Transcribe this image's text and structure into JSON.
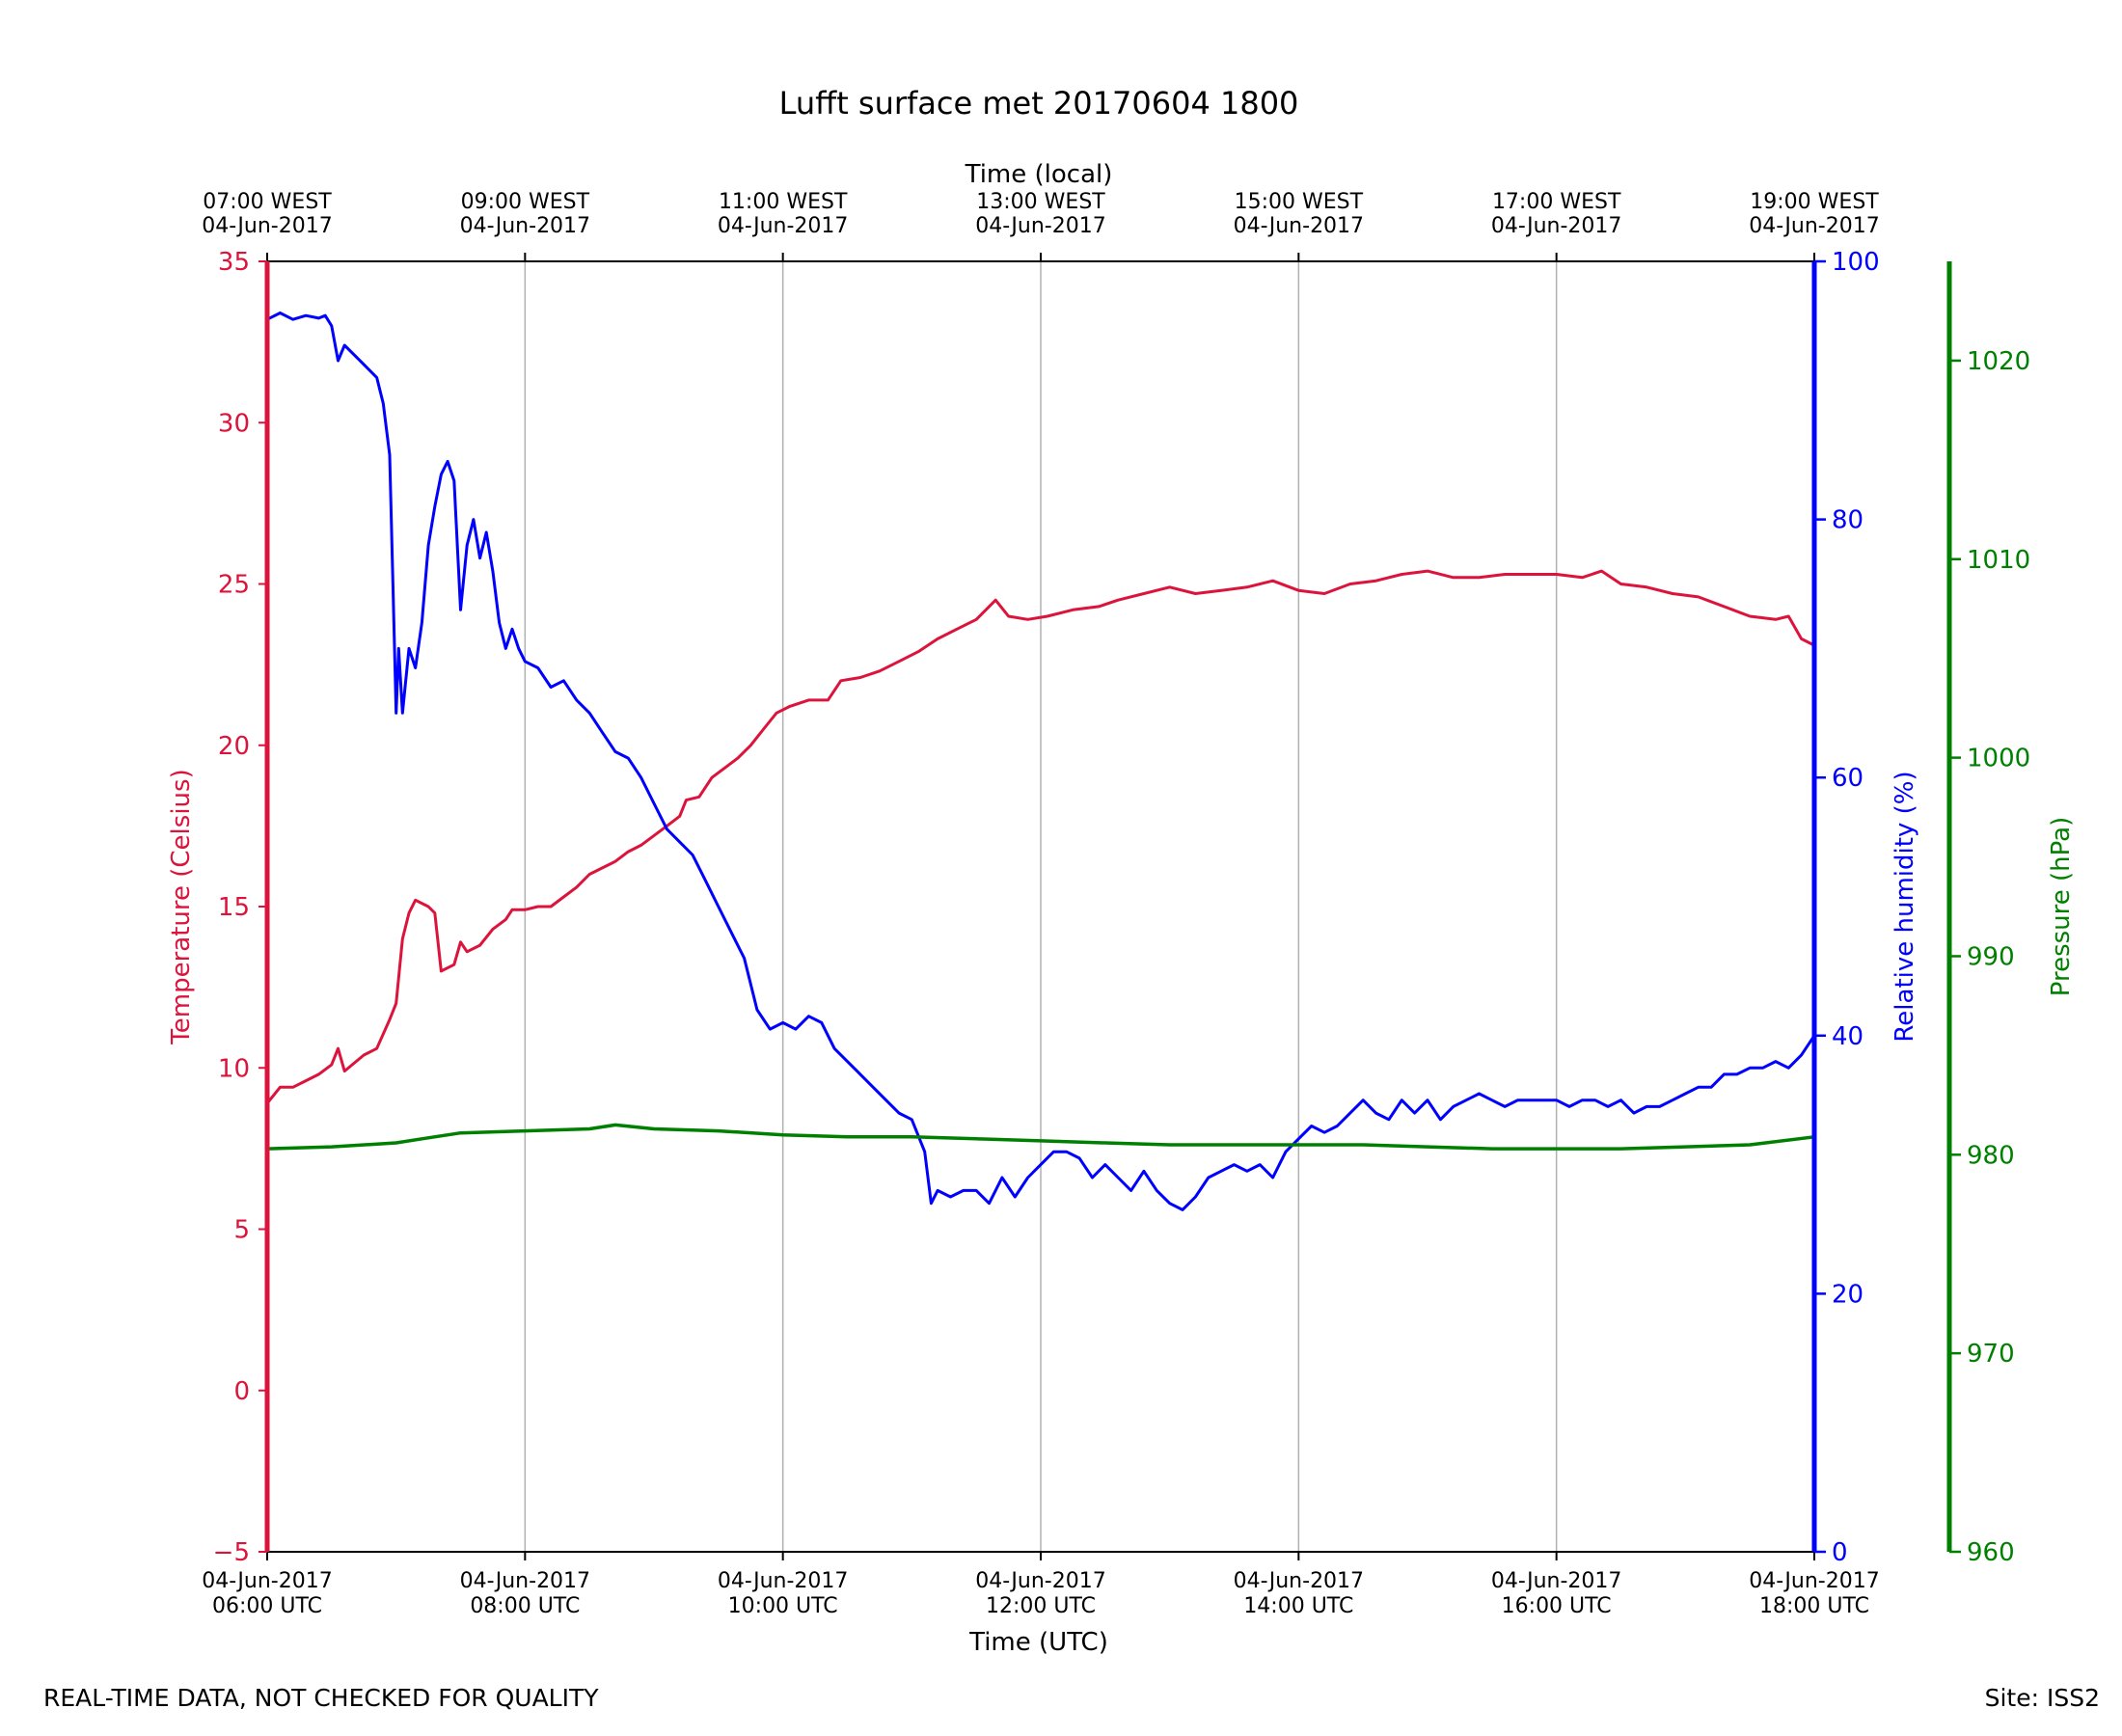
{
  "chart_data": {
    "type": "line",
    "title": "Lufft surface met 20170604 1800",
    "x_bottom": {
      "label": "Time (UTC)",
      "range_hours_utc": [
        6,
        18
      ],
      "ticks": [
        {
          "hour": 6,
          "date": "04-Jun-2017",
          "time": "06:00 UTC"
        },
        {
          "hour": 8,
          "date": "04-Jun-2017",
          "time": "08:00 UTC"
        },
        {
          "hour": 10,
          "date": "04-Jun-2017",
          "time": "10:00 UTC"
        },
        {
          "hour": 12,
          "date": "04-Jun-2017",
          "time": "12:00 UTC"
        },
        {
          "hour": 14,
          "date": "04-Jun-2017",
          "time": "14:00 UTC"
        },
        {
          "hour": 16,
          "date": "04-Jun-2017",
          "time": "16:00 UTC"
        },
        {
          "hour": 18,
          "date": "04-Jun-2017",
          "time": "18:00 UTC"
        }
      ]
    },
    "x_top": {
      "label": "Time (local)",
      "ticks": [
        {
          "hour": 6,
          "time": "07:00 WEST",
          "date": "04-Jun-2017"
        },
        {
          "hour": 8,
          "time": "09:00 WEST",
          "date": "04-Jun-2017"
        },
        {
          "hour": 10,
          "time": "11:00 WEST",
          "date": "04-Jun-2017"
        },
        {
          "hour": 12,
          "time": "13:00 WEST",
          "date": "04-Jun-2017"
        },
        {
          "hour": 14,
          "time": "15:00 WEST",
          "date": "04-Jun-2017"
        },
        {
          "hour": 16,
          "time": "17:00 WEST",
          "date": "04-Jun-2017"
        },
        {
          "hour": 18,
          "time": "19:00 WEST",
          "date": "04-Jun-2017"
        }
      ]
    },
    "y_axes": {
      "temperature": {
        "label": "Temperature (Celsius)",
        "range": [
          -5,
          35
        ],
        "ticks": [
          "−5",
          "0",
          "5",
          "10",
          "15",
          "20",
          "25",
          "30",
          "35"
        ],
        "color": "#dc143c"
      },
      "humidity": {
        "label": "Relative humidity (%)",
        "range": [
          0,
          100
        ],
        "ticks": [
          "0",
          "20",
          "40",
          "60",
          "80",
          "100"
        ],
        "color": "#0000ff"
      },
      "pressure": {
        "label": "Pressure (hPa)",
        "range": [
          960,
          1025
        ],
        "ticks": [
          "960",
          "970",
          "980",
          "990",
          "1000",
          "1010",
          "1020"
        ],
        "color": "#008000"
      }
    },
    "grid": "vertical",
    "series": [
      {
        "name": "Temperature",
        "axis": "temperature",
        "color": "#dc143c",
        "points": [
          [
            6.0,
            8.9
          ],
          [
            6.1,
            9.4
          ],
          [
            6.2,
            9.4
          ],
          [
            6.3,
            9.6
          ],
          [
            6.4,
            9.8
          ],
          [
            6.5,
            10.1
          ],
          [
            6.55,
            10.6
          ],
          [
            6.6,
            9.9
          ],
          [
            6.75,
            10.4
          ],
          [
            6.85,
            10.6
          ],
          [
            6.95,
            11.5
          ],
          [
            7.0,
            12.0
          ],
          [
            7.05,
            14.0
          ],
          [
            7.1,
            14.8
          ],
          [
            7.15,
            15.2
          ],
          [
            7.25,
            15.0
          ],
          [
            7.3,
            14.8
          ],
          [
            7.35,
            13.0
          ],
          [
            7.45,
            13.2
          ],
          [
            7.5,
            13.9
          ],
          [
            7.55,
            13.6
          ],
          [
            7.65,
            13.8
          ],
          [
            7.75,
            14.3
          ],
          [
            7.85,
            14.6
          ],
          [
            7.9,
            14.9
          ],
          [
            8.0,
            14.9
          ],
          [
            8.1,
            15.0
          ],
          [
            8.2,
            15.0
          ],
          [
            8.3,
            15.3
          ],
          [
            8.4,
            15.6
          ],
          [
            8.5,
            16.0
          ],
          [
            8.6,
            16.2
          ],
          [
            8.7,
            16.4
          ],
          [
            8.8,
            16.7
          ],
          [
            8.9,
            16.9
          ],
          [
            9.0,
            17.2
          ],
          [
            9.1,
            17.5
          ],
          [
            9.2,
            17.8
          ],
          [
            9.25,
            18.3
          ],
          [
            9.35,
            18.4
          ],
          [
            9.45,
            19.0
          ],
          [
            9.55,
            19.3
          ],
          [
            9.65,
            19.6
          ],
          [
            9.75,
            20.0
          ],
          [
            9.85,
            20.5
          ],
          [
            9.95,
            21.0
          ],
          [
            10.05,
            21.2
          ],
          [
            10.2,
            21.4
          ],
          [
            10.35,
            21.4
          ],
          [
            10.45,
            22.0
          ],
          [
            10.6,
            22.1
          ],
          [
            10.75,
            22.3
          ],
          [
            10.9,
            22.6
          ],
          [
            11.05,
            22.9
          ],
          [
            11.2,
            23.3
          ],
          [
            11.35,
            23.6
          ],
          [
            11.5,
            23.9
          ],
          [
            11.65,
            24.5
          ],
          [
            11.75,
            24.0
          ],
          [
            11.9,
            23.9
          ],
          [
            12.05,
            24.0
          ],
          [
            12.25,
            24.2
          ],
          [
            12.45,
            24.3
          ],
          [
            12.6,
            24.5
          ],
          [
            12.8,
            24.7
          ],
          [
            13.0,
            24.9
          ],
          [
            13.2,
            24.7
          ],
          [
            13.4,
            24.8
          ],
          [
            13.6,
            24.9
          ],
          [
            13.8,
            25.1
          ],
          [
            14.0,
            24.8
          ],
          [
            14.2,
            24.7
          ],
          [
            14.4,
            25.0
          ],
          [
            14.6,
            25.1
          ],
          [
            14.8,
            25.3
          ],
          [
            15.0,
            25.4
          ],
          [
            15.2,
            25.2
          ],
          [
            15.4,
            25.2
          ],
          [
            15.6,
            25.3
          ],
          [
            15.8,
            25.3
          ],
          [
            16.0,
            25.3
          ],
          [
            16.2,
            25.2
          ],
          [
            16.35,
            25.4
          ],
          [
            16.5,
            25.0
          ],
          [
            16.7,
            24.9
          ],
          [
            16.9,
            24.7
          ],
          [
            17.1,
            24.6
          ],
          [
            17.3,
            24.3
          ],
          [
            17.5,
            24.0
          ],
          [
            17.7,
            23.9
          ],
          [
            17.8,
            24.0
          ],
          [
            17.9,
            23.3
          ],
          [
            18.0,
            23.1
          ]
        ]
      },
      {
        "name": "Relative humidity",
        "axis": "humidity",
        "color": "#0000ff",
        "points": [
          [
            6.0,
            95.5
          ],
          [
            6.1,
            96.0
          ],
          [
            6.2,
            95.5
          ],
          [
            6.3,
            95.8
          ],
          [
            6.4,
            95.6
          ],
          [
            6.45,
            95.8
          ],
          [
            6.5,
            95.0
          ],
          [
            6.55,
            92.3
          ],
          [
            6.6,
            93.5
          ],
          [
            6.7,
            92.5
          ],
          [
            6.8,
            91.5
          ],
          [
            6.85,
            91.0
          ],
          [
            6.9,
            89.0
          ],
          [
            6.95,
            85.0
          ],
          [
            6.97,
            77.0
          ],
          [
            7.0,
            65.0
          ],
          [
            7.02,
            70.0
          ],
          [
            7.05,
            65.0
          ],
          [
            7.1,
            70.0
          ],
          [
            7.15,
            68.5
          ],
          [
            7.2,
            72.0
          ],
          [
            7.25,
            78.0
          ],
          [
            7.3,
            81.0
          ],
          [
            7.35,
            83.5
          ],
          [
            7.4,
            84.5
          ],
          [
            7.45,
            83.0
          ],
          [
            7.5,
            73.0
          ],
          [
            7.55,
            78.0
          ],
          [
            7.6,
            80.0
          ],
          [
            7.65,
            77.0
          ],
          [
            7.7,
            79.0
          ],
          [
            7.75,
            76.0
          ],
          [
            7.8,
            72.0
          ],
          [
            7.85,
            70.0
          ],
          [
            7.9,
            71.5
          ],
          [
            7.95,
            70.0
          ],
          [
            8.0,
            69.0
          ],
          [
            8.1,
            68.5
          ],
          [
            8.2,
            67.0
          ],
          [
            8.3,
            67.5
          ],
          [
            8.4,
            66.0
          ],
          [
            8.5,
            65.0
          ],
          [
            8.6,
            63.5
          ],
          [
            8.7,
            62.0
          ],
          [
            8.8,
            61.5
          ],
          [
            8.9,
            60.0
          ],
          [
            9.0,
            58.0
          ],
          [
            9.1,
            56.0
          ],
          [
            9.2,
            55.0
          ],
          [
            9.3,
            54.0
          ],
          [
            9.4,
            52.0
          ],
          [
            9.5,
            50.0
          ],
          [
            9.6,
            48.0
          ],
          [
            9.7,
            46.0
          ],
          [
            9.8,
            42.0
          ],
          [
            9.9,
            40.5
          ],
          [
            10.0,
            41.0
          ],
          [
            10.1,
            40.5
          ],
          [
            10.2,
            41.5
          ],
          [
            10.3,
            41.0
          ],
          [
            10.4,
            39.0
          ],
          [
            10.5,
            38.0
          ],
          [
            10.6,
            37.0
          ],
          [
            10.7,
            36.0
          ],
          [
            10.8,
            35.0
          ],
          [
            10.9,
            34.0
          ],
          [
            11.0,
            33.5
          ],
          [
            11.1,
            31.0
          ],
          [
            11.15,
            27.0
          ],
          [
            11.2,
            28.0
          ],
          [
            11.3,
            27.5
          ],
          [
            11.4,
            28.0
          ],
          [
            11.5,
            28.0
          ],
          [
            11.6,
            27.0
          ],
          [
            11.7,
            29.0
          ],
          [
            11.8,
            27.5
          ],
          [
            11.9,
            29.0
          ],
          [
            12.0,
            30.0
          ],
          [
            12.1,
            31.0
          ],
          [
            12.2,
            31.0
          ],
          [
            12.3,
            30.5
          ],
          [
            12.4,
            29.0
          ],
          [
            12.5,
            30.0
          ],
          [
            12.6,
            29.0
          ],
          [
            12.7,
            28.0
          ],
          [
            12.8,
            29.5
          ],
          [
            12.9,
            28.0
          ],
          [
            13.0,
            27.0
          ],
          [
            13.1,
            26.5
          ],
          [
            13.2,
            27.5
          ],
          [
            13.3,
            29.0
          ],
          [
            13.4,
            29.5
          ],
          [
            13.5,
            30.0
          ],
          [
            13.6,
            29.5
          ],
          [
            13.7,
            30.0
          ],
          [
            13.8,
            29.0
          ],
          [
            13.9,
            31.0
          ],
          [
            14.0,
            32.0
          ],
          [
            14.1,
            33.0
          ],
          [
            14.2,
            32.5
          ],
          [
            14.3,
            33.0
          ],
          [
            14.4,
            34.0
          ],
          [
            14.5,
            35.0
          ],
          [
            14.6,
            34.0
          ],
          [
            14.7,
            33.5
          ],
          [
            14.8,
            35.0
          ],
          [
            14.9,
            34.0
          ],
          [
            15.0,
            35.0
          ],
          [
            15.1,
            33.5
          ],
          [
            15.2,
            34.5
          ],
          [
            15.3,
            35.0
          ],
          [
            15.4,
            35.5
          ],
          [
            15.5,
            35.0
          ],
          [
            15.6,
            34.5
          ],
          [
            15.7,
            35.0
          ],
          [
            15.8,
            35.0
          ],
          [
            15.9,
            35.0
          ],
          [
            16.0,
            35.0
          ],
          [
            16.1,
            34.5
          ],
          [
            16.2,
            35.0
          ],
          [
            16.3,
            35.0
          ],
          [
            16.4,
            34.5
          ],
          [
            16.5,
            35.0
          ],
          [
            16.6,
            34.0
          ],
          [
            16.7,
            34.5
          ],
          [
            16.8,
            34.5
          ],
          [
            16.9,
            35.0
          ],
          [
            17.0,
            35.5
          ],
          [
            17.1,
            36.0
          ],
          [
            17.2,
            36.0
          ],
          [
            17.3,
            37.0
          ],
          [
            17.4,
            37.0
          ],
          [
            17.5,
            37.5
          ],
          [
            17.6,
            37.5
          ],
          [
            17.7,
            38.0
          ],
          [
            17.8,
            37.5
          ],
          [
            17.9,
            38.5
          ],
          [
            18.0,
            40.0
          ]
        ]
      },
      {
        "name": "Pressure",
        "axis": "pressure",
        "color": "#008000",
        "points": [
          [
            6.0,
            980.3
          ],
          [
            6.5,
            980.4
          ],
          [
            7.0,
            980.6
          ],
          [
            7.2,
            980.8
          ],
          [
            7.5,
            981.1
          ],
          [
            8.0,
            981.2
          ],
          [
            8.5,
            981.3
          ],
          [
            8.7,
            981.5
          ],
          [
            9.0,
            981.3
          ],
          [
            9.5,
            981.2
          ],
          [
            10.0,
            981.0
          ],
          [
            10.5,
            980.9
          ],
          [
            11.0,
            980.9
          ],
          [
            11.5,
            980.8
          ],
          [
            12.0,
            980.7
          ],
          [
            12.5,
            980.6
          ],
          [
            13.0,
            980.5
          ],
          [
            13.5,
            980.5
          ],
          [
            14.0,
            980.5
          ],
          [
            14.5,
            980.5
          ],
          [
            15.0,
            980.4
          ],
          [
            15.5,
            980.3
          ],
          [
            16.0,
            980.3
          ],
          [
            16.5,
            980.3
          ],
          [
            17.0,
            980.4
          ],
          [
            17.5,
            980.5
          ],
          [
            18.0,
            980.9
          ]
        ]
      }
    ]
  },
  "footer": {
    "left": "REAL-TIME DATA, NOT CHECKED FOR QUALITY",
    "right": "Site: ISS2"
  }
}
